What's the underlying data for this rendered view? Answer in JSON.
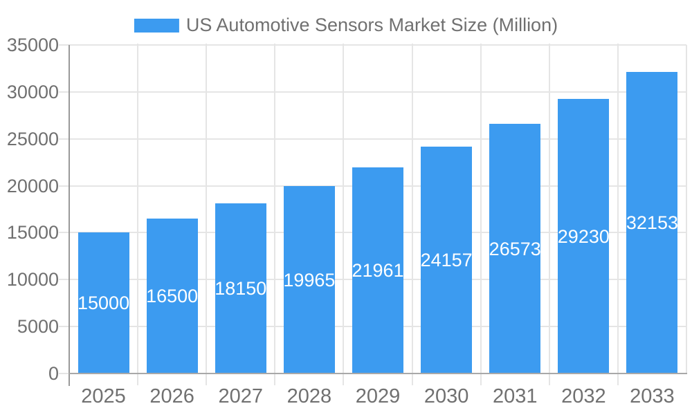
{
  "legend": {
    "label": "US Automotive Sensors Market Size (Million)"
  },
  "colors": {
    "bar": "#3c9bf0",
    "grid": "#e5e5e5",
    "minor_tick": "#d4d4d4",
    "y_axis": "#999999",
    "x_axis": "#a8a8a8",
    "text": "#707070",
    "bar_label": "#ffffff",
    "background": "#ffffff"
  },
  "chart_data": {
    "type": "bar",
    "title": "US Automotive Sensors Market Size (Million)",
    "categories": [
      "2025",
      "2026",
      "2027",
      "2028",
      "2029",
      "2030",
      "2031",
      "2032",
      "2033"
    ],
    "values": [
      15000,
      16500,
      18150,
      19965,
      21961,
      24157,
      26573,
      29230,
      32153
    ],
    "xlabel": "",
    "ylabel": "",
    "ylim": [
      0,
      35000
    ],
    "ytick_interval": 5000,
    "ytick_labels": [
      "0",
      "5000",
      "10000",
      "15000",
      "20000",
      "25000",
      "30000",
      "35000"
    ],
    "grid": true,
    "legend_position": "top",
    "bar_label_position": "inside-center"
  }
}
